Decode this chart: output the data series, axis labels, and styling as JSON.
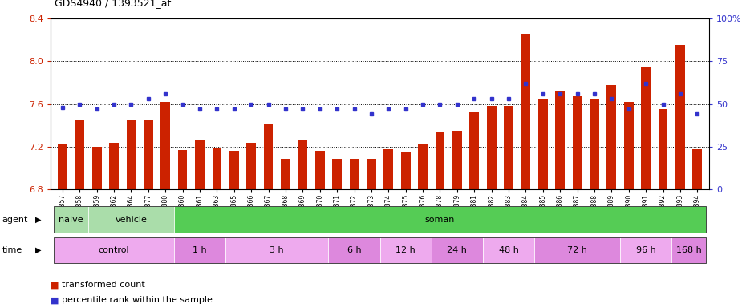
{
  "title": "GDS4940 / 1393521_at",
  "samples": [
    "GSM338857",
    "GSM338858",
    "GSM338859",
    "GSM338862",
    "GSM338864",
    "GSM338877",
    "GSM338880",
    "GSM338860",
    "GSM338861",
    "GSM338863",
    "GSM338865",
    "GSM338866",
    "GSM338867",
    "GSM338868",
    "GSM338869",
    "GSM338870",
    "GSM338871",
    "GSM338872",
    "GSM338873",
    "GSM338874",
    "GSM338875",
    "GSM338876",
    "GSM338878",
    "GSM338879",
    "GSM338881",
    "GSM338882",
    "GSM338883",
    "GSM338884",
    "GSM338885",
    "GSM338886",
    "GSM338887",
    "GSM338888",
    "GSM338889",
    "GSM338890",
    "GSM338891",
    "GSM338892",
    "GSM338893",
    "GSM338894"
  ],
  "bar_values": [
    7.22,
    7.45,
    7.2,
    7.24,
    7.45,
    7.45,
    7.62,
    7.17,
    7.26,
    7.19,
    7.16,
    7.24,
    7.42,
    7.09,
    7.26,
    7.16,
    7.09,
    7.09,
    7.09,
    7.18,
    7.15,
    7.22,
    7.34,
    7.35,
    7.52,
    7.58,
    7.58,
    8.25,
    7.65,
    7.72,
    7.67,
    7.65,
    7.78,
    7.62,
    7.95,
    7.55,
    8.15,
    7.18
  ],
  "dot_values": [
    48,
    50,
    47,
    50,
    50,
    53,
    56,
    50,
    47,
    47,
    47,
    50,
    50,
    47,
    47,
    47,
    47,
    47,
    44,
    47,
    47,
    50,
    50,
    50,
    53,
    53,
    53,
    62,
    56,
    56,
    56,
    56,
    53,
    47,
    62,
    50,
    56,
    44
  ],
  "ylim_left": [
    6.8,
    8.4
  ],
  "ylim_right": [
    0,
    100
  ],
  "yticks_left": [
    6.8,
    7.2,
    7.6,
    8.0,
    8.4
  ],
  "yticks_right": [
    0,
    25,
    50,
    75,
    100
  ],
  "bar_color": "#cc2200",
  "dot_color": "#3333cc",
  "bar_bottom": 6.8,
  "agent_spans": [
    {
      "label": "naive",
      "start": 0,
      "end": 2,
      "color": "#aaddaa"
    },
    {
      "label": "vehicle",
      "start": 2,
      "end": 7,
      "color": "#aaddaa"
    },
    {
      "label": "soman",
      "start": 7,
      "end": 38,
      "color": "#55cc55"
    }
  ],
  "time_spans": [
    {
      "label": "control",
      "start": 0,
      "end": 7,
      "color": "#eeaaee"
    },
    {
      "label": "1 h",
      "start": 7,
      "end": 10,
      "color": "#dd88dd"
    },
    {
      "label": "3 h",
      "start": 10,
      "end": 16,
      "color": "#eeaaee"
    },
    {
      "label": "6 h",
      "start": 16,
      "end": 19,
      "color": "#dd88dd"
    },
    {
      "label": "12 h",
      "start": 19,
      "end": 22,
      "color": "#eeaaee"
    },
    {
      "label": "24 h",
      "start": 22,
      "end": 25,
      "color": "#dd88dd"
    },
    {
      "label": "48 h",
      "start": 25,
      "end": 28,
      "color": "#eeaaee"
    },
    {
      "label": "72 h",
      "start": 28,
      "end": 33,
      "color": "#dd88dd"
    },
    {
      "label": "96 h",
      "start": 33,
      "end": 36,
      "color": "#eeaaee"
    },
    {
      "label": "168 h",
      "start": 36,
      "end": 38,
      "color": "#dd88dd"
    }
  ],
  "legend_bar": "transformed count",
  "legend_dot": "percentile rank within the sample",
  "bg_color": "#ffffff",
  "tick_color_left": "#cc2200",
  "tick_color_right": "#3333cc",
  "hgrid_color": "#000000",
  "hgrid_values": [
    8.0,
    7.6,
    7.2
  ]
}
